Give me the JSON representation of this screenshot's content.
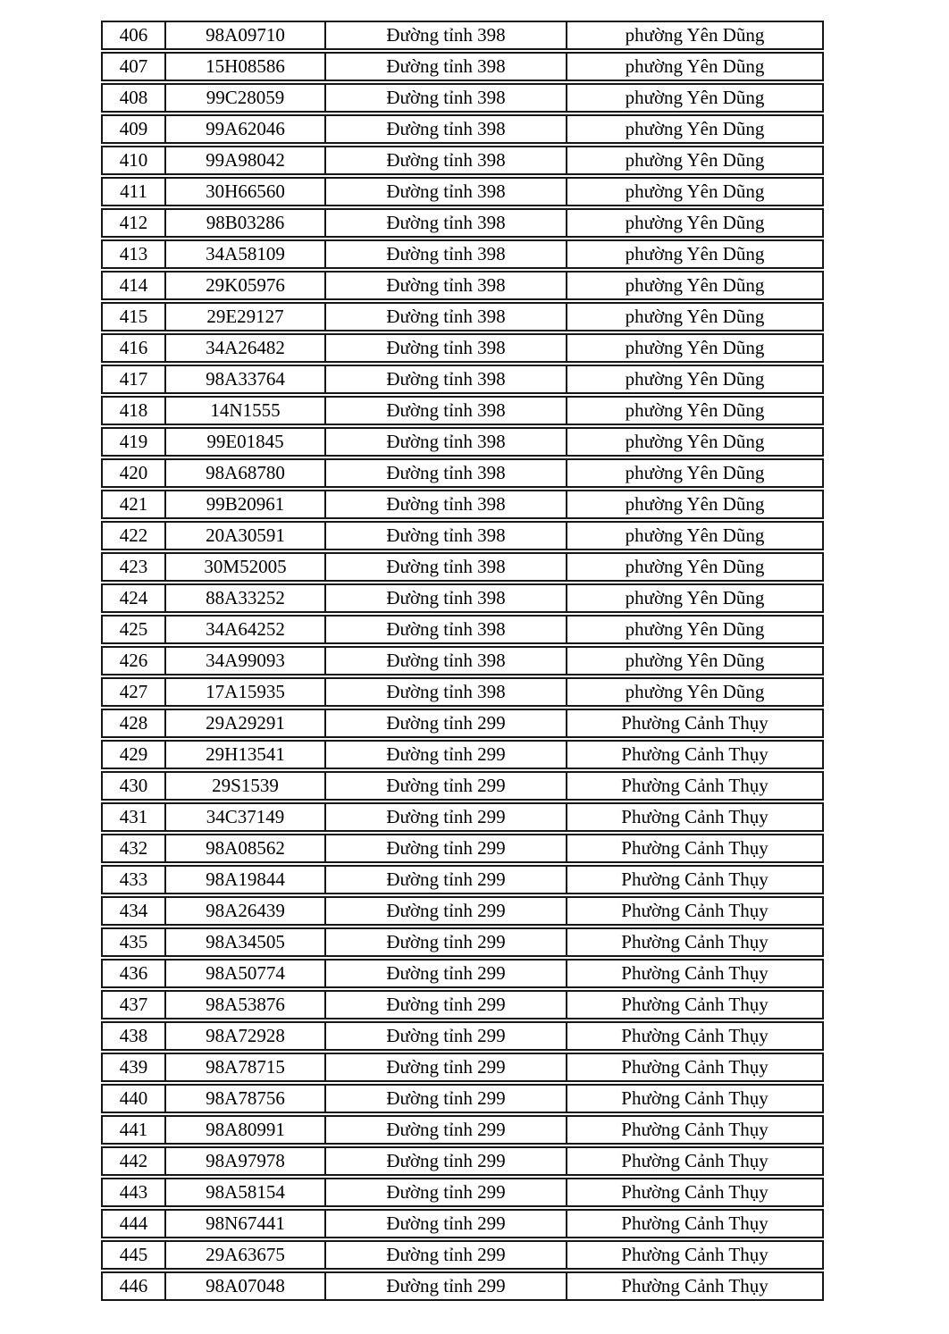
{
  "page": {
    "background_color": "#ffffff",
    "text_color": "#000000",
    "table_border_color": "#161616"
  },
  "table": {
    "column_roles": [
      "row-number",
      "vehicle-code",
      "road-name",
      "ward-name"
    ],
    "rows": [
      {
        "no": "406",
        "code": "98A09710",
        "road": "Đường tỉnh 398",
        "ward": "phường Yên Dũng"
      },
      {
        "no": "407",
        "code": "15H08586",
        "road": "Đường tỉnh 398",
        "ward": "phường Yên Dũng"
      },
      {
        "no": "408",
        "code": "99C28059",
        "road": "Đường tỉnh 398",
        "ward": "phường Yên Dũng"
      },
      {
        "no": "409",
        "code": "99A62046",
        "road": "Đường tỉnh 398",
        "ward": "phường Yên Dũng"
      },
      {
        "no": "410",
        "code": "99A98042",
        "road": "Đường tỉnh 398",
        "ward": "phường Yên Dũng"
      },
      {
        "no": "411",
        "code": "30H66560",
        "road": "Đường tỉnh 398",
        "ward": "phường Yên Dũng"
      },
      {
        "no": "412",
        "code": "98B03286",
        "road": "Đường tỉnh 398",
        "ward": "phường Yên Dũng"
      },
      {
        "no": "413",
        "code": "34A58109",
        "road": "Đường tỉnh 398",
        "ward": "phường Yên Dũng"
      },
      {
        "no": "414",
        "code": "29K05976",
        "road": "Đường tỉnh 398",
        "ward": "phường Yên Dũng"
      },
      {
        "no": "415",
        "code": "29E29127",
        "road": "Đường tỉnh 398",
        "ward": "phường Yên Dũng"
      },
      {
        "no": "416",
        "code": "34A26482",
        "road": "Đường tỉnh 398",
        "ward": "phường Yên Dũng"
      },
      {
        "no": "417",
        "code": "98A33764",
        "road": "Đường tỉnh 398",
        "ward": "phường Yên Dũng"
      },
      {
        "no": "418",
        "code": "14N1555",
        "road": "Đường tỉnh 398",
        "ward": "phường Yên Dũng"
      },
      {
        "no": "419",
        "code": "99E01845",
        "road": "Đường tỉnh 398",
        "ward": "phường Yên Dũng"
      },
      {
        "no": "420",
        "code": "98A68780",
        "road": "Đường tỉnh 398",
        "ward": "phường Yên Dũng"
      },
      {
        "no": "421",
        "code": "99B20961",
        "road": "Đường tỉnh 398",
        "ward": "phường Yên Dũng"
      },
      {
        "no": "422",
        "code": "20A30591",
        "road": "Đường tỉnh 398",
        "ward": "phường Yên Dũng"
      },
      {
        "no": "423",
        "code": "30M52005",
        "road": "Đường tỉnh 398",
        "ward": "phường Yên Dũng"
      },
      {
        "no": "424",
        "code": "88A33252",
        "road": "Đường tỉnh 398",
        "ward": "phường Yên Dũng"
      },
      {
        "no": "425",
        "code": "34A64252",
        "road": "Đường tỉnh 398",
        "ward": "phường Yên Dũng"
      },
      {
        "no": "426",
        "code": "34A99093",
        "road": "Đường tỉnh 398",
        "ward": "phường Yên Dũng"
      },
      {
        "no": "427",
        "code": "17A15935",
        "road": "Đường tỉnh 398",
        "ward": "phường Yên Dũng"
      },
      {
        "no": "428",
        "code": "29A29291",
        "road": "Đường tỉnh 299",
        "ward": "Phường Cảnh Thụy"
      },
      {
        "no": "429",
        "code": "29H13541",
        "road": "Đường tỉnh 299",
        "ward": "Phường Cảnh Thụy"
      },
      {
        "no": "430",
        "code": "29S1539",
        "road": "Đường tỉnh 299",
        "ward": "Phường Cảnh Thụy"
      },
      {
        "no": "431",
        "code": "34C37149",
        "road": "Đường tỉnh 299",
        "ward": "Phường Cảnh Thụy"
      },
      {
        "no": "432",
        "code": "98A08562",
        "road": "Đường tỉnh 299",
        "ward": "Phường Cảnh Thụy"
      },
      {
        "no": "433",
        "code": "98A19844",
        "road": "Đường tỉnh 299",
        "ward": "Phường Cảnh Thụy"
      },
      {
        "no": "434",
        "code": "98A26439",
        "road": "Đường tỉnh 299",
        "ward": "Phường Cảnh Thụy"
      },
      {
        "no": "435",
        "code": "98A34505",
        "road": "Đường tỉnh 299",
        "ward": "Phường Cảnh Thụy"
      },
      {
        "no": "436",
        "code": "98A50774",
        "road": "Đường tỉnh 299",
        "ward": "Phường Cảnh Thụy"
      },
      {
        "no": "437",
        "code": "98A53876",
        "road": "Đường tỉnh 299",
        "ward": "Phường Cảnh Thụy"
      },
      {
        "no": "438",
        "code": "98A72928",
        "road": "Đường tỉnh 299",
        "ward": "Phường Cảnh Thụy"
      },
      {
        "no": "439",
        "code": "98A78715",
        "road": "Đường tỉnh 299",
        "ward": "Phường Cảnh Thụy"
      },
      {
        "no": "440",
        "code": "98A78756",
        "road": "Đường tỉnh 299",
        "ward": "Phường Cảnh Thụy"
      },
      {
        "no": "441",
        "code": "98A80991",
        "road": "Đường tỉnh 299",
        "ward": "Phường Cảnh Thụy"
      },
      {
        "no": "442",
        "code": "98A97978",
        "road": "Đường tỉnh 299",
        "ward": "Phường Cảnh Thụy"
      },
      {
        "no": "443",
        "code": "98A58154",
        "road": "Đường tỉnh 299",
        "ward": "Phường Cảnh Thụy"
      },
      {
        "no": "444",
        "code": "98N67441",
        "road": "Đường tỉnh 299",
        "ward": "Phường Cảnh Thụy"
      },
      {
        "no": "445",
        "code": "29A63675",
        "road": "Đường tỉnh 299",
        "ward": "Phường Cảnh Thụy"
      },
      {
        "no": "446",
        "code": "98A07048",
        "road": "Đường tỉnh 299",
        "ward": "Phường Cảnh Thụy"
      }
    ]
  }
}
